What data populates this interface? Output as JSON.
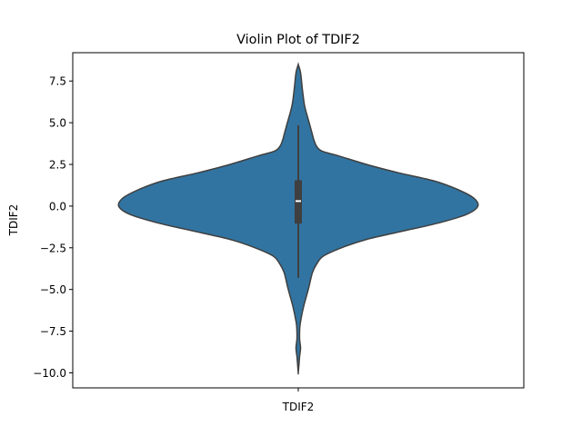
{
  "chart_data": {
    "type": "violin",
    "title": "Violin Plot of TDIF2",
    "xlabel": "",
    "ylabel": "TDIF2",
    "categories": [
      "TDIF2"
    ],
    "ylim": [
      -10.9,
      9.2
    ],
    "yticks": [
      -10.0,
      -7.5,
      -5.0,
      -2.5,
      0.0,
      2.5,
      5.0,
      7.5
    ],
    "ytick_labels": [
      "−10.0",
      "−7.5",
      "−5.0",
      "−2.5",
      "0.0",
      "2.5",
      "5.0",
      "7.5"
    ],
    "grid": false,
    "colors": {
      "violin_fill": "#3274a1",
      "violin_edge": "#3f3f3f",
      "box": "#3f3f3f",
      "median": "#ffffff"
    },
    "density_profile": [
      {
        "y": 8.5,
        "halfwidth": 0.0
      },
      {
        "y": 8.0,
        "halfwidth": 0.05
      },
      {
        "y": 7.0,
        "halfwidth": 0.09
      },
      {
        "y": 6.0,
        "halfwidth": 0.14
      },
      {
        "y": 5.0,
        "halfwidth": 0.24
      },
      {
        "y": 4.3,
        "halfwidth": 0.31
      },
      {
        "y": 4.0,
        "halfwidth": 0.34
      },
      {
        "y": 3.6,
        "halfwidth": 0.4
      },
      {
        "y": 3.3,
        "halfwidth": 0.52
      },
      {
        "y": 3.0,
        "halfwidth": 0.9
      },
      {
        "y": 2.5,
        "halfwidth": 1.5
      },
      {
        "y": 2.0,
        "halfwidth": 2.2
      },
      {
        "y": 1.5,
        "halfwidth": 3.0
      },
      {
        "y": 1.0,
        "halfwidth": 3.5
      },
      {
        "y": 0.5,
        "halfwidth": 3.85
      },
      {
        "y": 0.0,
        "halfwidth": 3.95
      },
      {
        "y": -0.5,
        "halfwidth": 3.7
      },
      {
        "y": -1.0,
        "halfwidth": 3.1
      },
      {
        "y": -1.5,
        "halfwidth": 2.3
      },
      {
        "y": -2.0,
        "halfwidth": 1.5
      },
      {
        "y": -2.5,
        "halfwidth": 0.95
      },
      {
        "y": -3.0,
        "halfwidth": 0.55
      },
      {
        "y": -3.5,
        "halfwidth": 0.4
      },
      {
        "y": -4.0,
        "halfwidth": 0.31
      },
      {
        "y": -5.0,
        "halfwidth": 0.22
      },
      {
        "y": -6.0,
        "halfwidth": 0.12
      },
      {
        "y": -7.0,
        "halfwidth": 0.045
      },
      {
        "y": -7.5,
        "halfwidth": 0.03
      },
      {
        "y": -8.0,
        "halfwidth": 0.03
      },
      {
        "y": -8.5,
        "halfwidth": 0.05
      },
      {
        "y": -9.0,
        "halfwidth": 0.03
      },
      {
        "y": -9.5,
        "halfwidth": 0.015
      },
      {
        "y": -10.0,
        "halfwidth": 0.0
      }
    ],
    "box": {
      "q1": -1.05,
      "median": 0.3,
      "q3": 1.55,
      "whisker_low": -4.3,
      "whisker_high": 4.85
    }
  }
}
